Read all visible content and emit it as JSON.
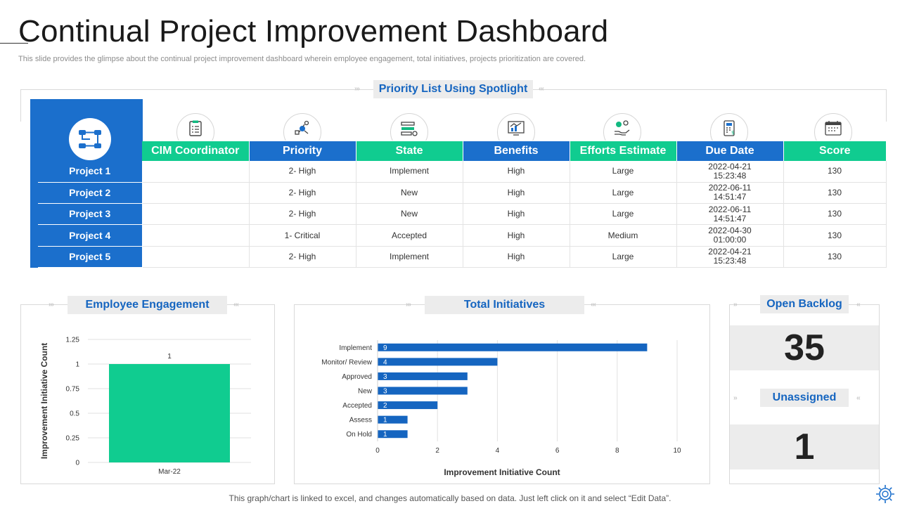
{
  "page": {
    "title": "Continual Project Improvement Dashboard",
    "subtitle": "This slide provides the glimpse about the continual project improvement dashboard wherein employee engagement, total initiatives, projects prioritization are covered.",
    "footer": "This graph/chart is linked to excel,  and changes automatically based on data. Just left click on it and select “Edit Data”."
  },
  "priority_section": {
    "heading": "Priority  List Using Spotlight",
    "columns": [
      "CIM Coordinator",
      "Priority",
      "State",
      "Benefits",
      "Efforts  Estimate",
      "Due Date",
      "Score"
    ],
    "column_icons": [
      "clipboard-list-icon",
      "priority-hierarchy-icon",
      "state-sliders-icon",
      "benefits-chart-icon",
      "effort-hand-coins-icon",
      "due-date-calculator-icon",
      "score-calendar-icon"
    ],
    "rows": [
      {
        "project": "Project 1",
        "coordinator": "",
        "priority": "2- High",
        "state": "Implement",
        "benefits": "High",
        "efforts": "Large",
        "due_date": "2022-04-21",
        "due_time": "15:23:48",
        "score": "130"
      },
      {
        "project": "Project 2",
        "coordinator": "",
        "priority": "2- High",
        "state": "New",
        "benefits": "High",
        "efforts": "Large",
        "due_date": "2022-06-11",
        "due_time": "14:51:47",
        "score": "130"
      },
      {
        "project": "Project 3",
        "coordinator": "",
        "priority": "2- High",
        "state": "New",
        "benefits": "High",
        "efforts": "Large",
        "due_date": "2022-06-11",
        "due_time": "14:51:47",
        "score": "130"
      },
      {
        "project": "Project 4",
        "coordinator": "",
        "priority": "1- Critical",
        "state": "Accepted",
        "benefits": "High",
        "efforts": "Medium",
        "due_date": "2022-04-30",
        "due_time": "01:00:00",
        "score": "130"
      },
      {
        "project": "Project 5",
        "coordinator": "",
        "priority": "2- High",
        "state": "Implement",
        "benefits": "High",
        "efforts": "Large",
        "due_date": "2022-04-21",
        "due_time": "15:23:48",
        "score": "130"
      }
    ]
  },
  "engagement": {
    "heading": "Employee Engagement"
  },
  "initiatives": {
    "heading": "Total Initiatives"
  },
  "backlog": {
    "open_heading": "Open Backlog",
    "open_value": "35",
    "unassigned_heading": "Unassigned",
    "unassigned_value": "1"
  },
  "colors": {
    "blue": "#1b6fcc",
    "green": "#10cc90",
    "heading_text": "#1565c0",
    "bar_blue": "#1565c0"
  },
  "chart_data": [
    {
      "type": "bar",
      "categories": [
        "Mar-22"
      ],
      "values": [
        1
      ],
      "data_labels": [
        "1"
      ],
      "ylabel": "Improvement Initiative Count",
      "yticks": [
        "0",
        "0.25",
        "0.5",
        "0.75",
        "1",
        "1.25"
      ],
      "ylim": [
        0,
        1.25
      ],
      "grid": true,
      "color": "#10cc90"
    },
    {
      "type": "bar",
      "orientation": "horizontal",
      "categories": [
        "Implement",
        "Monitor/ Review",
        "Approved",
        "New",
        "Accepted",
        "Assess",
        "On Hold"
      ],
      "values": [
        9,
        4,
        3,
        3,
        2,
        1,
        1
      ],
      "data_labels": [
        "9",
        "4",
        "3",
        "3",
        "2",
        "1",
        "1"
      ],
      "xlabel": "Improvement  Initiative Count",
      "xticks": [
        "0",
        "2",
        "4",
        "6",
        "8",
        "10"
      ],
      "xlim": [
        0,
        10
      ],
      "grid": true,
      "color": "#1565c0"
    }
  ]
}
